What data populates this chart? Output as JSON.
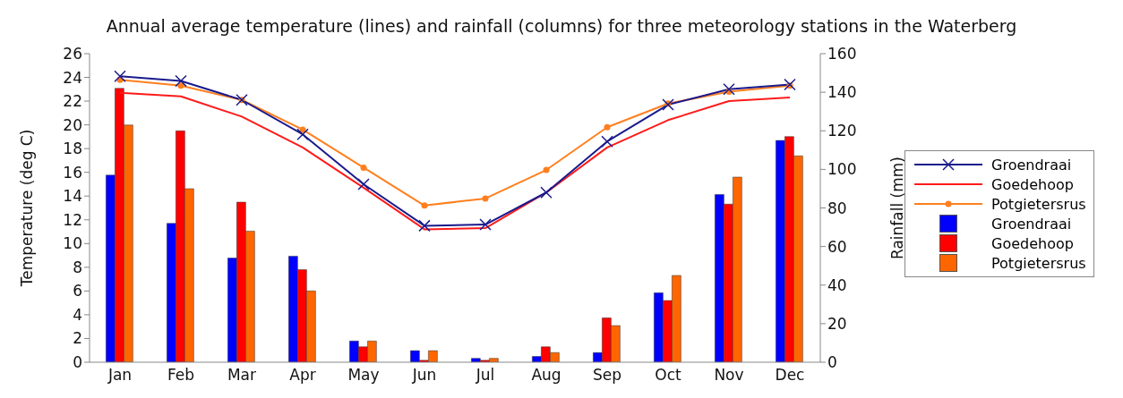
{
  "chart_data": {
    "type": "bar",
    "title": "Annual average temperature (lines) and rainfall (columns) for three meteorology stations in the Waterberg",
    "categories": [
      "Jan",
      "Feb",
      "Mar",
      "Apr",
      "May",
      "Jun",
      "Jul",
      "Aug",
      "Sep",
      "Oct",
      "Nov",
      "Dec"
    ],
    "ylabel": "Temperature (deg C)",
    "y2label": "Rainfall (mm)",
    "ylim": [
      0,
      26
    ],
    "yticks": [
      0,
      2,
      4,
      6,
      8,
      10,
      12,
      14,
      16,
      18,
      20,
      22,
      24,
      26
    ],
    "y2lim": [
      0,
      160
    ],
    "y2ticks": [
      0,
      20,
      40,
      60,
      80,
      100,
      120,
      140,
      160
    ],
    "grid": false,
    "legend": "right",
    "series": [
      {
        "name": "Groendraai",
        "type": "line",
        "marker": "cross",
        "color": "#1a1a8c",
        "values": [
          24.1,
          23.7,
          22.1,
          19.2,
          15.0,
          11.5,
          11.6,
          14.3,
          18.6,
          21.7,
          23.0,
          23.4
        ]
      },
      {
        "name": "Goedehoop",
        "type": "line",
        "marker": "none",
        "color": "#ff1a1a",
        "values": [
          22.7,
          22.4,
          20.7,
          18.1,
          14.7,
          11.2,
          11.3,
          14.3,
          18.1,
          20.4,
          22.0,
          22.3
        ]
      },
      {
        "name": "Potgietersrus",
        "type": "line",
        "marker": "circle",
        "color": "#ff7f1e",
        "values": [
          23.8,
          23.3,
          22.1,
          19.6,
          16.4,
          13.2,
          13.8,
          16.2,
          19.8,
          21.8,
          22.8,
          23.3
        ]
      },
      {
        "name": "Groendraai",
        "axis": "y2",
        "color": "#0000ff",
        "values": [
          97,
          72,
          54,
          55,
          11,
          6,
          2,
          3,
          5,
          36,
          87,
          115
        ]
      },
      {
        "name": "Goedehoop",
        "axis": "y2",
        "color": "#ff0000",
        "values": [
          142,
          120,
          83,
          48,
          8,
          1,
          1,
          8,
          23,
          32,
          82,
          117
        ]
      },
      {
        "name": "Potgietersrus",
        "axis": "y2",
        "color": "#ff6600",
        "values": [
          123,
          90,
          68,
          37,
          11,
          6,
          2,
          5,
          19,
          45,
          96,
          107
        ]
      }
    ]
  }
}
